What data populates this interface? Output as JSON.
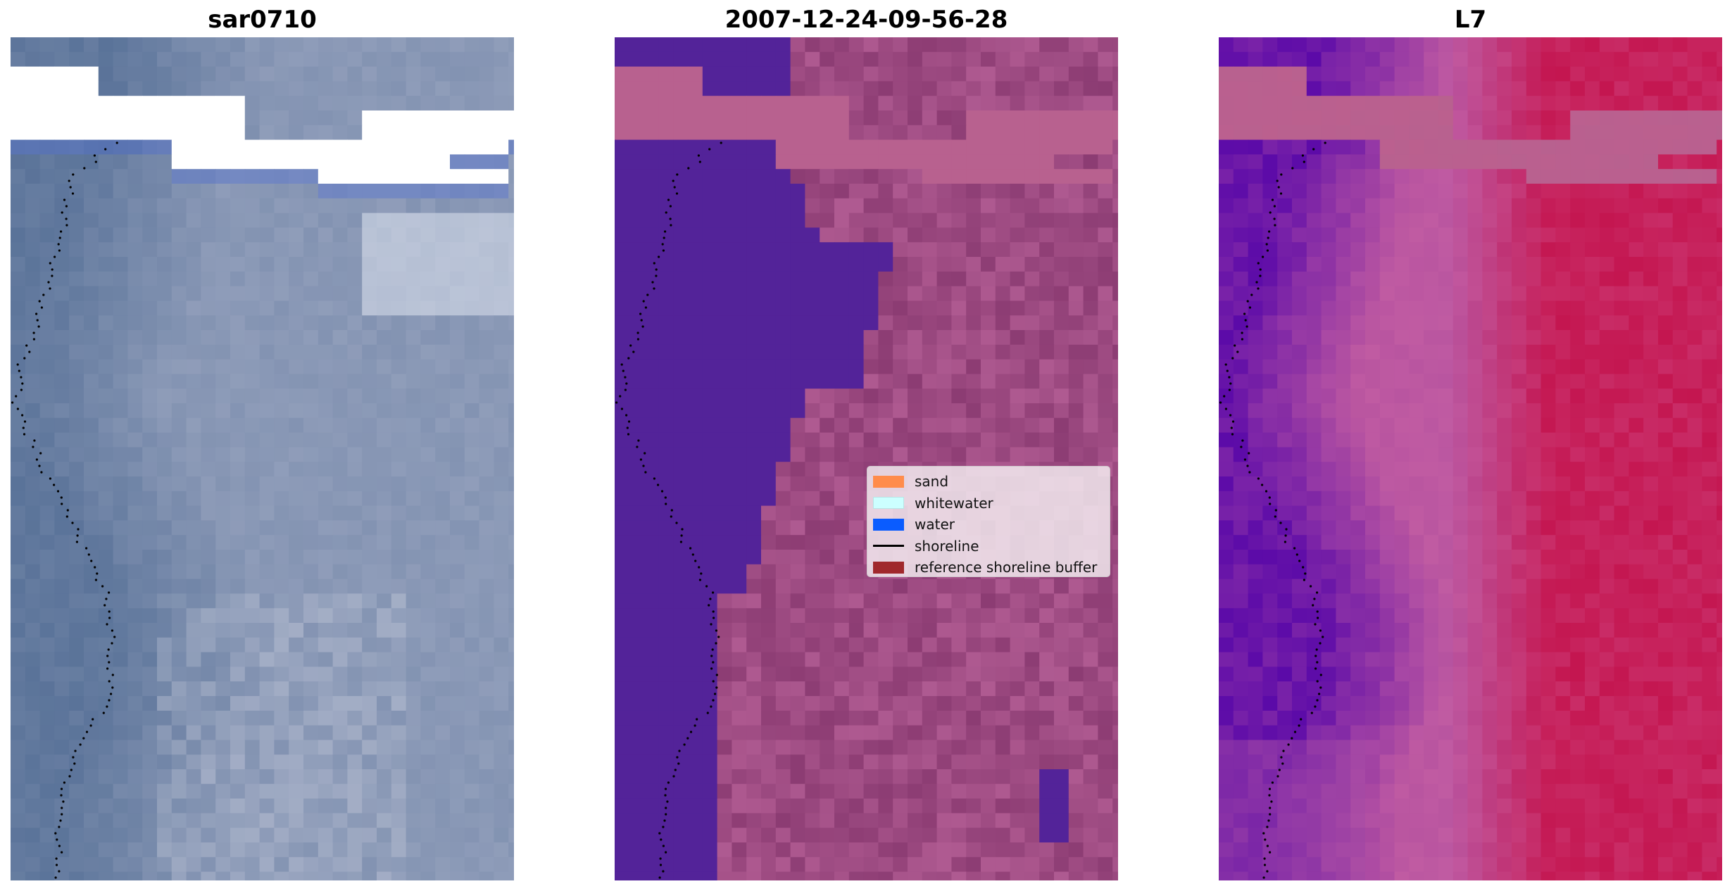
{
  "figure": {
    "panels": [
      {
        "id": "rgb",
        "title": "sar0710"
      },
      {
        "id": "classified",
        "title": "2007-12-24-09-56-28"
      },
      {
        "id": "index",
        "title": "L7"
      }
    ]
  },
  "legend": {
    "items": [
      {
        "label": "sand",
        "color": "#ff8c4b",
        "kind": "patch"
      },
      {
        "label": "whitewater",
        "color": "#ccffff",
        "kind": "patch"
      },
      {
        "label": "water",
        "color": "#0a5cff",
        "kind": "patch"
      },
      {
        "label": "shoreline",
        "color": "#000000",
        "kind": "line"
      },
      {
        "label": "reference shoreline buffer",
        "color": "#a0282c",
        "kind": "patch"
      }
    ]
  },
  "colors": {
    "cloud_mask": "#ffffff",
    "water_class": "#532399",
    "buffer_overlay": "#b8618f",
    "rgb_water": "#5a7399",
    "rgb_land": "#8d9bb8",
    "index_water": "#5b0aa8",
    "index_land": "#c41650"
  }
}
